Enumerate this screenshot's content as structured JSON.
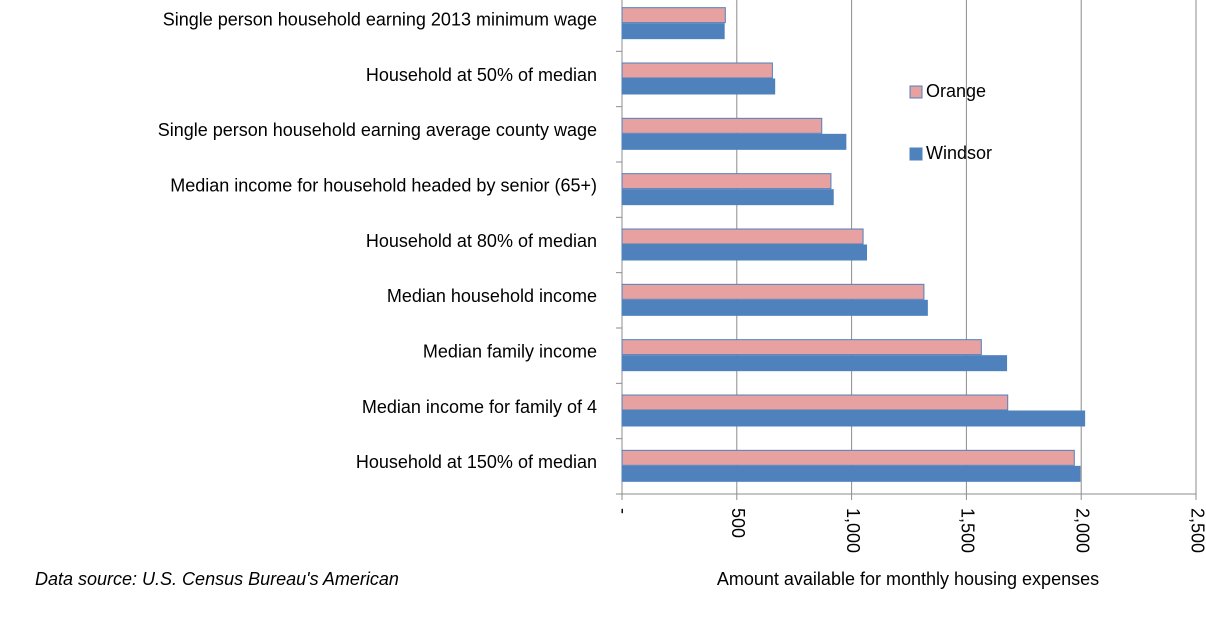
{
  "chart_data": {
    "type": "hbar",
    "categories": [
      "Single person household earning 2013 minimum wage",
      "Household at 50% of median",
      "Single person household earning average county wage",
      "Median income for household headed by senior (65+)",
      "Household at 80% of median",
      "Median household income",
      "Median family income",
      "Median income for family of 4",
      "Household at 150% of median"
    ],
    "series": [
      {
        "name": "Orange",
        "color": "#e6a1a0",
        "values": [
          450,
          655,
          870,
          910,
          1050,
          1315,
          1565,
          1680,
          1970
        ]
      },
      {
        "name": "Windsor",
        "color": "#4f81bd",
        "values": [
          445,
          665,
          975,
          920,
          1065,
          1330,
          1675,
          2015,
          1995
        ]
      }
    ],
    "xlim": [
      0,
      2500
    ],
    "xticks": [
      {
        "value": 0,
        "label": "-"
      },
      500,
      {
        "value": 1000,
        "label": "1,000"
      },
      {
        "value": 1500,
        "label": "1,500"
      },
      {
        "value": 2000,
        "label": "2,000"
      },
      {
        "value": 2500,
        "label": "2,500"
      }
    ],
    "x_axis_label": "Amount available for monthly housing expenses",
    "footnote": "Data source:  U.S. Census Bureau's American",
    "grid": true,
    "legend": "upper-center"
  }
}
